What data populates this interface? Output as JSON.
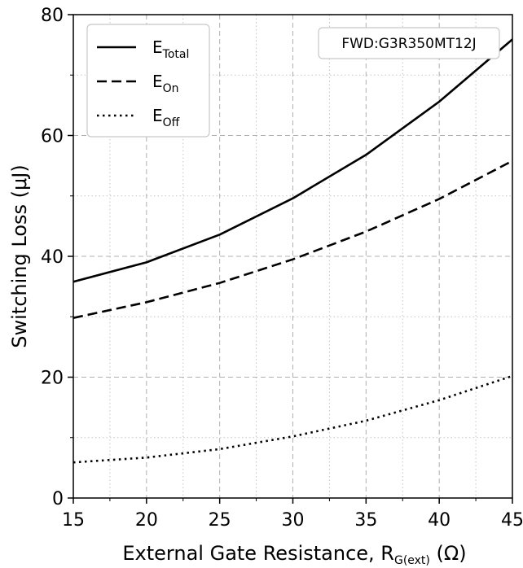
{
  "chart_data": {
    "type": "line",
    "title": "",
    "xlabel": {
      "main": "External Gate Resistance, R",
      "sub": "G(ext)",
      "unit": " (Ω)"
    },
    "ylabel": "Switching Loss (μJ)",
    "x": [
      15,
      20,
      25,
      30,
      35,
      40,
      45
    ],
    "xlim": [
      15,
      45
    ],
    "ylim": [
      0,
      80
    ],
    "xticks": [
      "15",
      "20",
      "25",
      "30",
      "35",
      "40",
      "45"
    ],
    "yticks": [
      "0",
      "20",
      "40",
      "60",
      "80"
    ],
    "grid": true,
    "legend_position": "top-left",
    "annotation": "FWD:G3R350MT12J",
    "series": [
      {
        "name": "E",
        "sub": "Total",
        "style": "solid",
        "values": [
          35.8,
          39.0,
          43.6,
          49.6,
          56.8,
          65.6,
          75.9
        ]
      },
      {
        "name": "E",
        "sub": "On",
        "style": "dashed",
        "values": [
          29.8,
          32.4,
          35.6,
          39.5,
          44.1,
          49.5,
          55.8
        ]
      },
      {
        "name": "E",
        "sub": "Off",
        "style": "dotted",
        "values": [
          5.9,
          6.7,
          8.1,
          10.2,
          12.8,
          16.2,
          20.2
        ]
      }
    ]
  }
}
